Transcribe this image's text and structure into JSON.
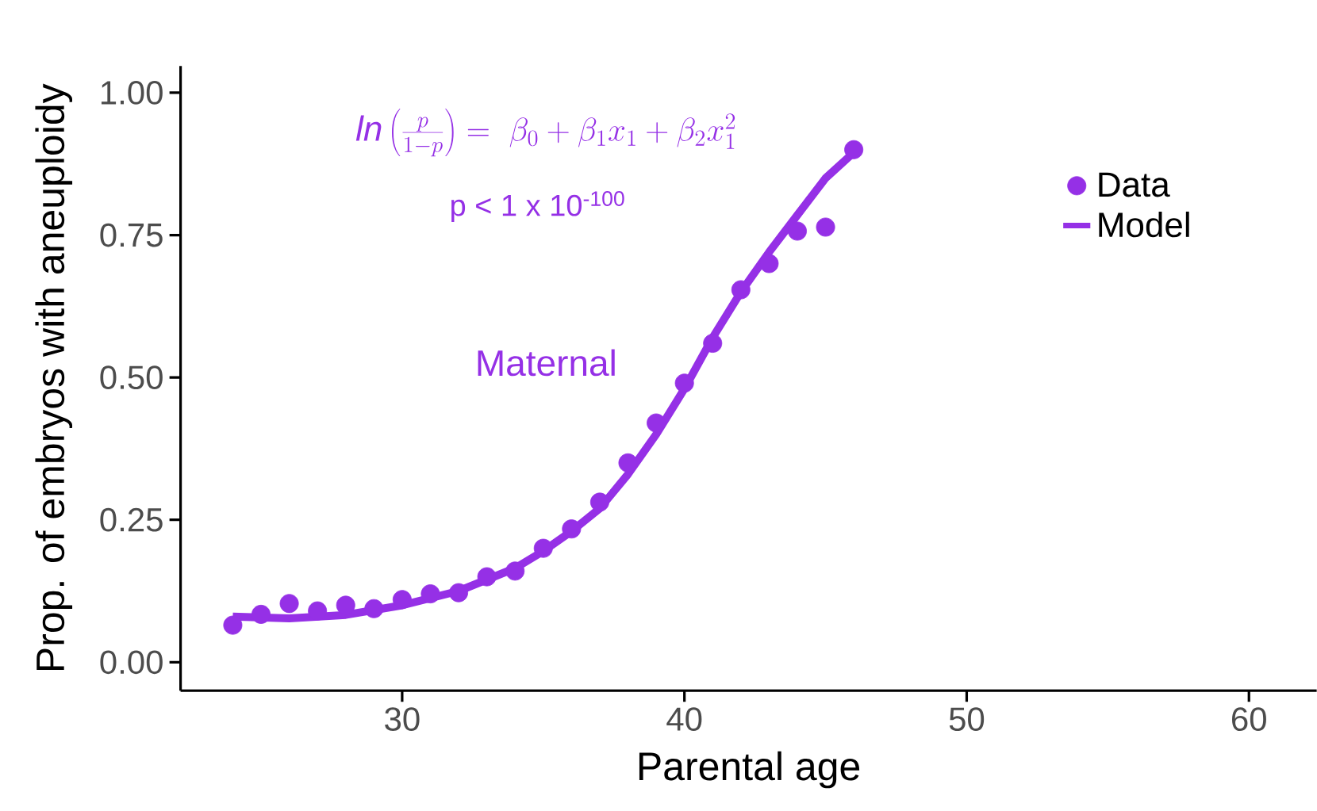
{
  "chart_data": {
    "type": "scatter",
    "xlabel": "Parental age",
    "ylabel": "Prop. of embryos with aneuploidy",
    "xlim": [
      22.15,
      62.4
    ],
    "xticks": [
      30,
      40,
      50,
      60
    ],
    "ylim": [
      -0.05,
      1.047
    ],
    "yticks": [
      {
        "value": 0,
        "label": "0.00"
      },
      {
        "value": 0.25,
        "label": "0.25"
      },
      {
        "value": 0.5,
        "label": "0.50"
      },
      {
        "value": 0.75,
        "label": "0.75"
      },
      {
        "value": 1,
        "label": "1.00"
      }
    ],
    "grid": false,
    "legend": "top right",
    "series": [
      {
        "name": "Data",
        "marker": "circle",
        "color": "#9530e6",
        "x": [
          24,
          25,
          26,
          27,
          28,
          29,
          30,
          31,
          32,
          33,
          34,
          35,
          36,
          37,
          38,
          39,
          40,
          41,
          42,
          43,
          44,
          45,
          46
        ],
        "values": [
          0.065,
          0.084,
          0.103,
          0.09,
          0.1,
          0.094,
          0.11,
          0.12,
          0.122,
          0.15,
          0.16,
          0.2,
          0.234,
          0.281,
          0.35,
          0.42,
          0.49,
          0.56,
          0.654,
          0.7,
          0.757,
          0.764,
          0.9
        ]
      },
      {
        "name": "Model",
        "type": "line",
        "marker": "none",
        "line_style": "solid",
        "color": "#9530e6",
        "x": [
          24,
          26,
          28,
          30,
          32,
          34,
          35,
          36,
          37,
          38,
          39,
          40,
          41,
          42,
          43,
          44,
          45,
          46
        ],
        "values": [
          0.08,
          0.077,
          0.083,
          0.1,
          0.125,
          0.165,
          0.195,
          0.23,
          0.27,
          0.33,
          0.4,
          0.48,
          0.57,
          0.65,
          0.72,
          0.785,
          0.85,
          0.895
        ]
      }
    ],
    "annotations": [
      "\\mathit{ln}\\left(\\frac{p}{1-p}\\right)=\\ \\beta_0+\\beta_1x_1+\\beta_2x_1^2",
      "p < 1 x 10$^{-100}$",
      "Maternal"
    ]
  }
}
